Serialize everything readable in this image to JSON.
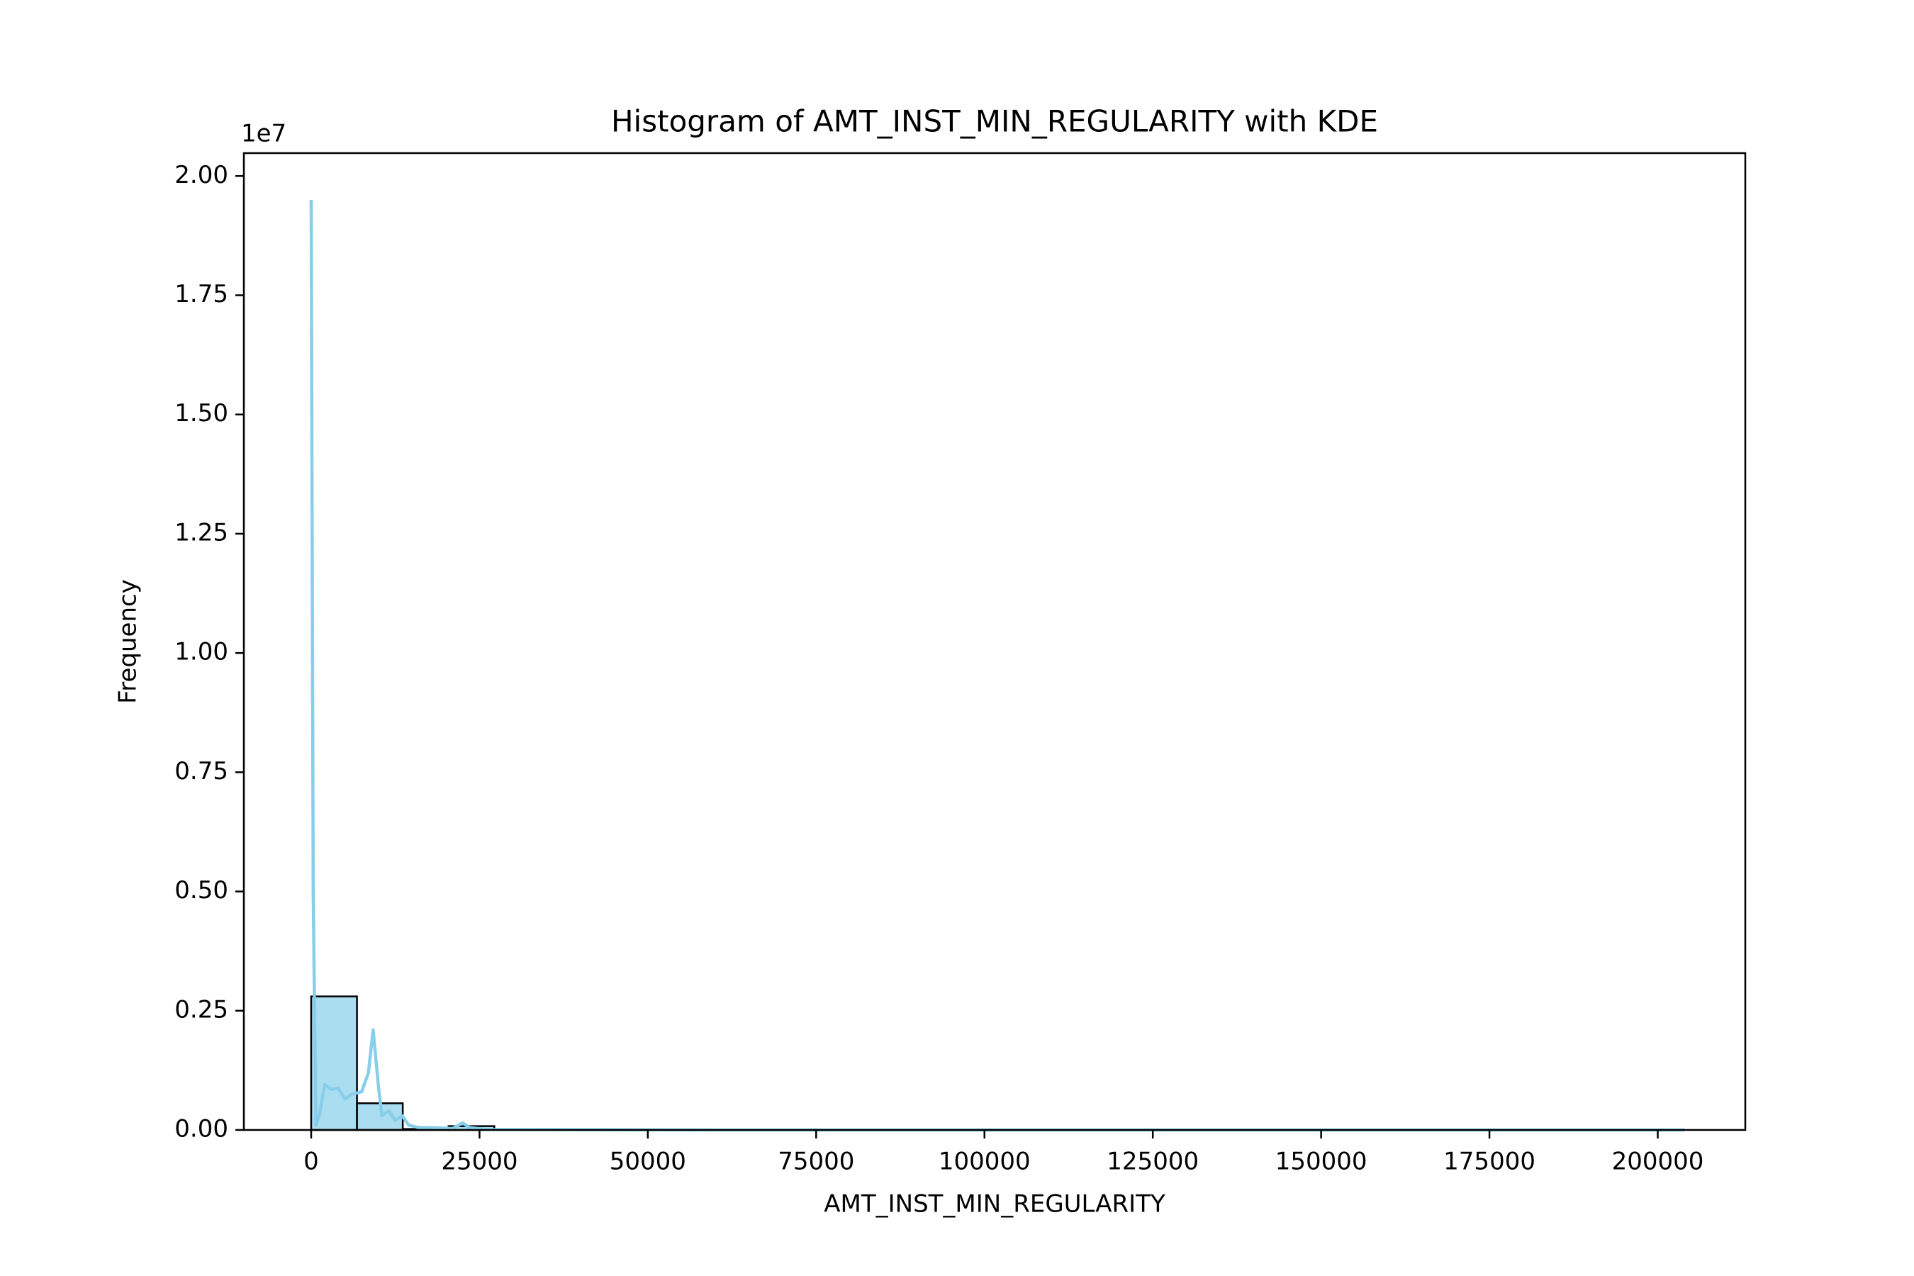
{
  "chart_data": {
    "type": "histogram",
    "title": "Histogram of AMT_INST_MIN_REGULARITY with KDE",
    "x_label": "AMT_INST_MIN_REGULARITY",
    "y_label": "Frequency",
    "y_offset_label": "1e7",
    "bins": [
      0,
      6800,
      13600,
      20400,
      27200,
      34000,
      40800,
      47600,
      54400,
      61200,
      68000,
      74800,
      81600,
      88400,
      95200,
      102000,
      108800,
      115600,
      122400,
      129200,
      136000,
      142800,
      149600,
      156400,
      163200,
      170000,
      176800,
      183600,
      190400,
      197200,
      204000
    ],
    "counts": [
      2800000,
      560000,
      20000,
      80000,
      10000,
      5000,
      2000,
      1000,
      0,
      0,
      0,
      0,
      0,
      0,
      0,
      0,
      0,
      0,
      0,
      0,
      0,
      0,
      0,
      0,
      0,
      0,
      0,
      0,
      0,
      0
    ],
    "color": "#87ceeb",
    "edge_color": "#000000",
    "kde": {
      "color": "#87ceeb",
      "x": [
        0,
        300,
        700,
        1200,
        2000,
        3000,
        4000,
        5000,
        6000,
        7500,
        8500,
        9200,
        10000,
        10500,
        11500,
        12500,
        13500,
        14500,
        16000,
        18000,
        21000,
        22500,
        23500,
        26000,
        40000,
        60000,
        100000,
        150000,
        204000
      ],
      "values": [
        19500000,
        5000000,
        100000,
        300000,
        950000,
        850000,
        880000,
        650000,
        750000,
        800000,
        1200000,
        2100000,
        900000,
        300000,
        400000,
        200000,
        300000,
        100000,
        50000,
        50000,
        30000,
        150000,
        50000,
        10000,
        5000,
        0,
        0,
        0,
        0
      ]
    },
    "xlim": [
      -10000,
      213000
    ],
    "ylim": [
      0,
      20480000
    ],
    "xticks": [
      0,
      25000,
      50000,
      75000,
      100000,
      125000,
      150000,
      175000,
      200000
    ],
    "yticks": [
      {
        "value": 0,
        "label": "0.00"
      },
      {
        "value": 2500000,
        "label": "0.25"
      },
      {
        "value": 5000000,
        "label": "0.50"
      },
      {
        "value": 7500000,
        "label": "0.75"
      },
      {
        "value": 10000000,
        "label": "1.00"
      },
      {
        "value": 12500000,
        "label": "1.25"
      },
      {
        "value": 15000000,
        "label": "1.50"
      },
      {
        "value": 17500000,
        "label": "1.75"
      },
      {
        "value": 20000000,
        "label": "2.00"
      }
    ],
    "grid": false
  }
}
